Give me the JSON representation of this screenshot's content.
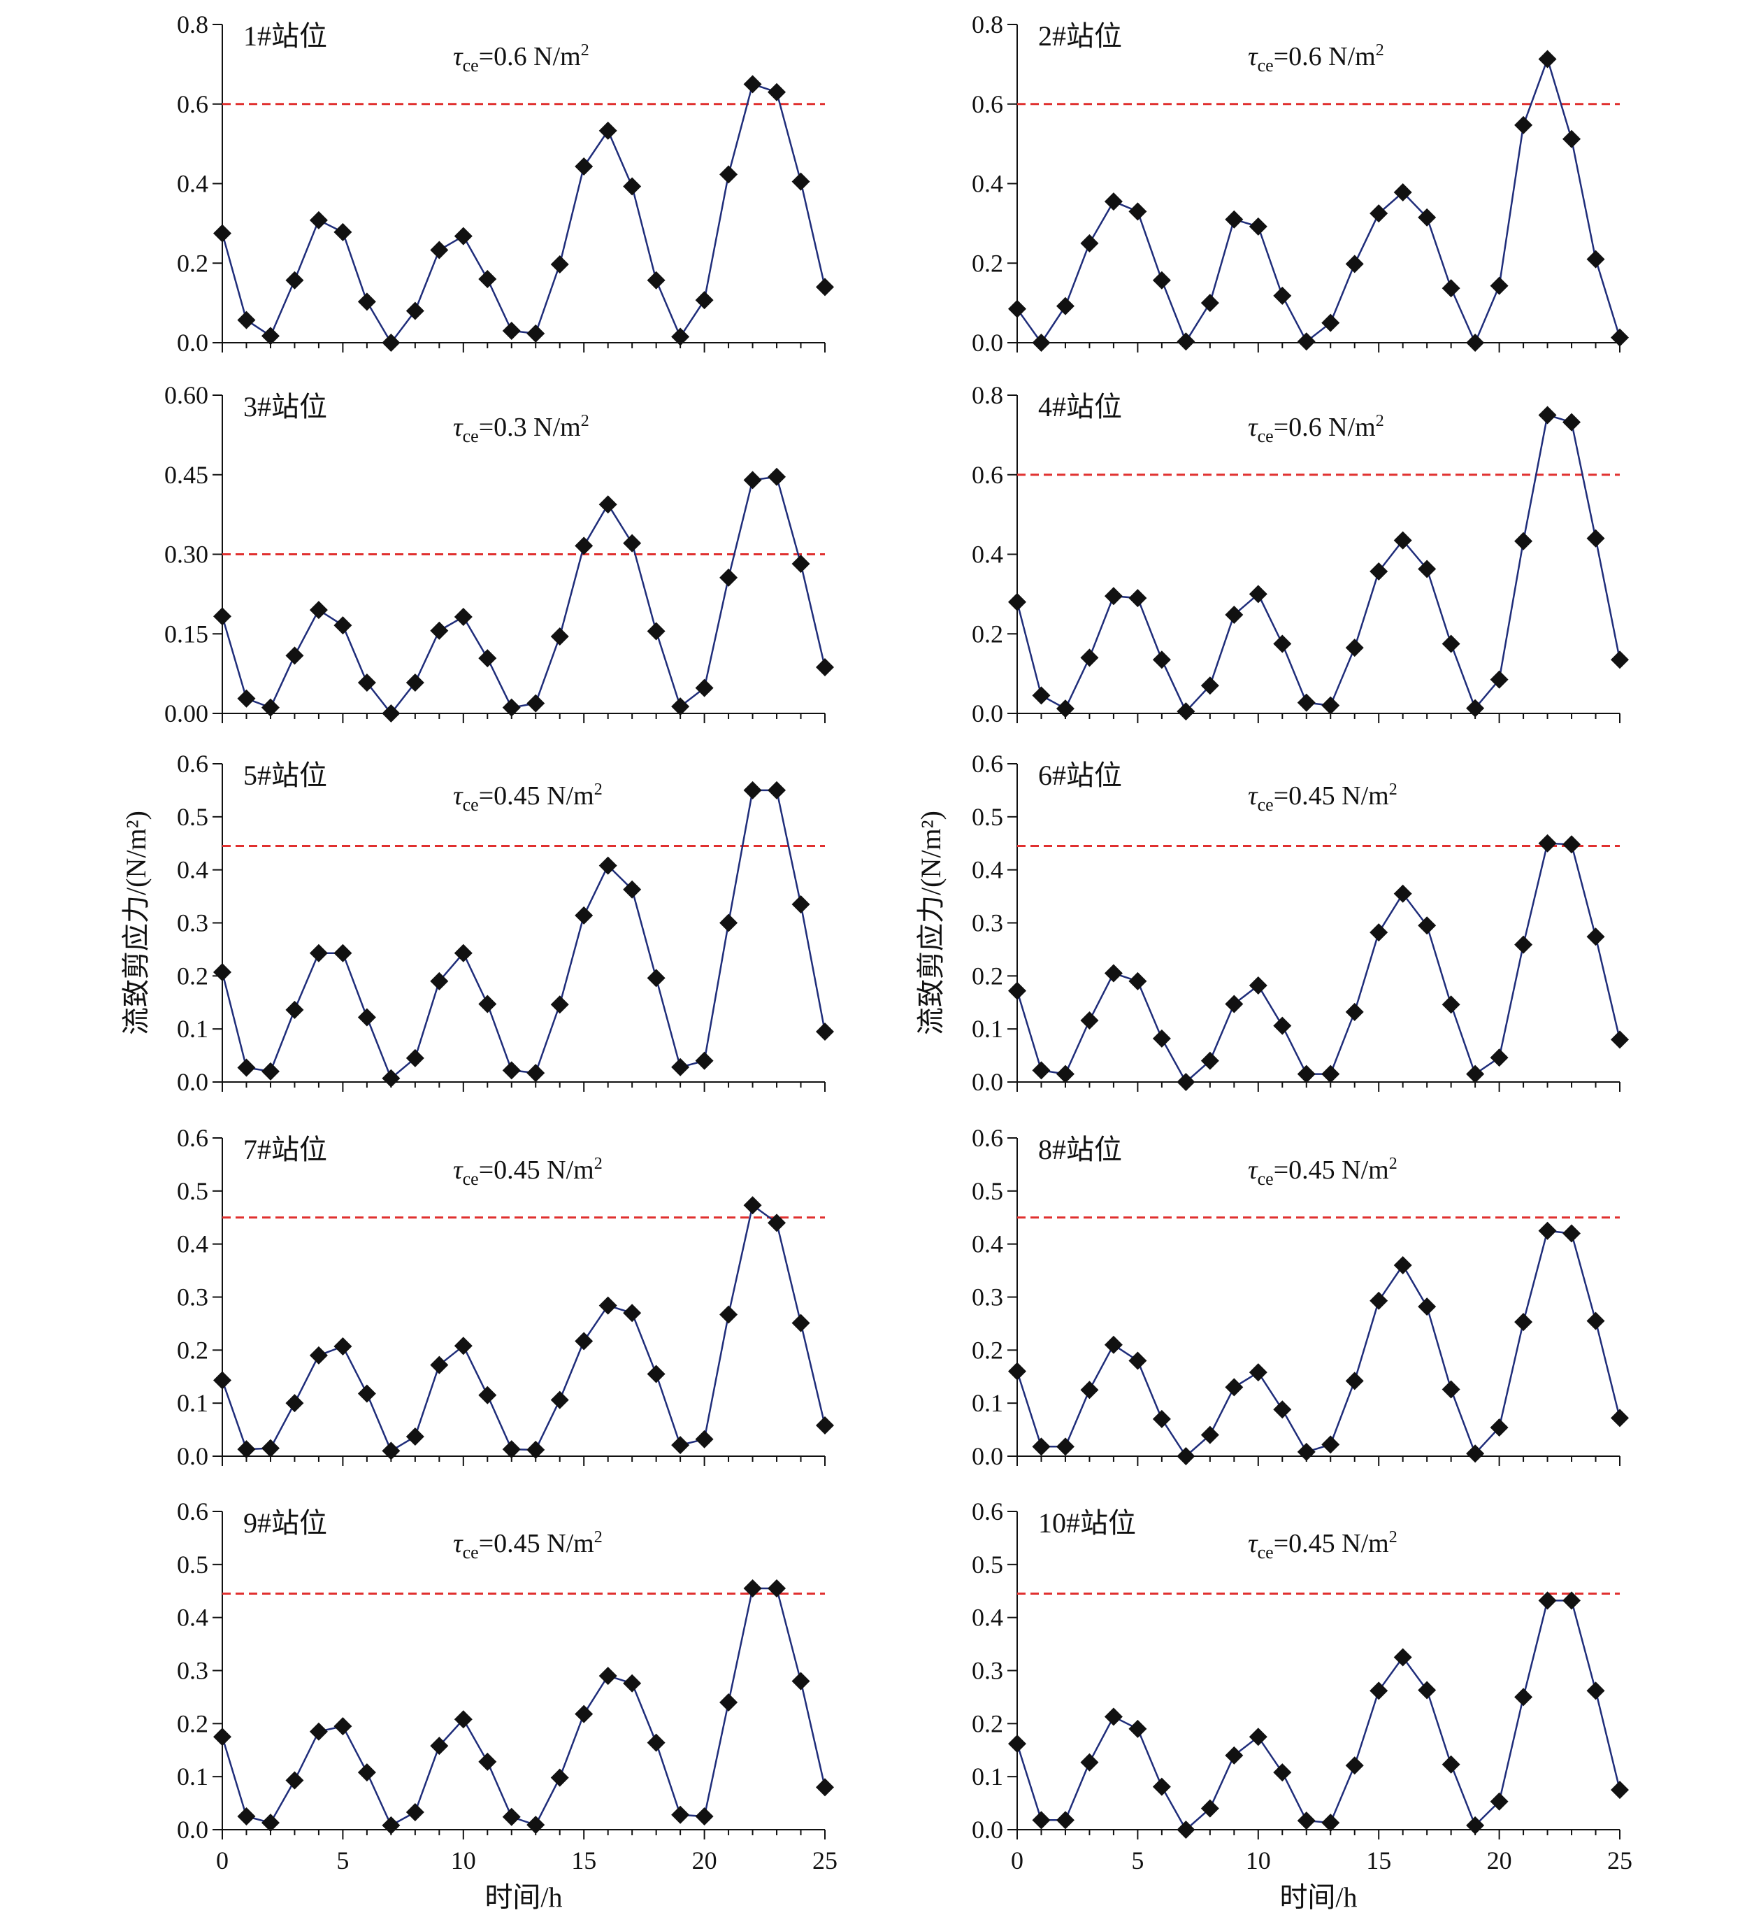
{
  "chart_data": [
    {
      "panel": "1#站位",
      "type": "line",
      "x": [
        0,
        1,
        2,
        3,
        4,
        5,
        6,
        7,
        8,
        9,
        10,
        11,
        12,
        13,
        14,
        15,
        16,
        17,
        18,
        19,
        20,
        21,
        22,
        23,
        24,
        25
      ],
      "series": [
        {
          "values": [
            0.275,
            0.057,
            0.017,
            0.157,
            0.308,
            0.278,
            0.103,
            0.0,
            0.08,
            0.233,
            0.268,
            0.16,
            0.03,
            0.023,
            0.197,
            0.443,
            0.533,
            0.393,
            0.157,
            0.015,
            0.107,
            0.423,
            0.65,
            0.63,
            0.405,
            0.14
          ]
        }
      ],
      "threshold": {
        "label_sym": "τ",
        "label_sub": "ce",
        "label_rest": "=0.6 N/m",
        "label_sup": "2",
        "value": 0.6
      },
      "ylim": [
        0,
        0.8
      ],
      "yticks": [
        "0.0",
        "0.2",
        "0.4",
        "0.6",
        "0.8"
      ],
      "ytick_values": [
        0,
        0.2,
        0.4,
        0.6,
        0.8
      ],
      "ylabel": "",
      "xlabel": "",
      "xticks": []
    },
    {
      "panel": "2#站位",
      "type": "line",
      "x": [
        0,
        1,
        2,
        3,
        4,
        5,
        6,
        7,
        8,
        9,
        10,
        11,
        12,
        13,
        14,
        15,
        16,
        17,
        18,
        19,
        20,
        21,
        22,
        23,
        24,
        25
      ],
      "series": [
        {
          "values": [
            0.085,
            0.0,
            0.092,
            0.25,
            0.355,
            0.33,
            0.157,
            0.003,
            0.1,
            0.31,
            0.292,
            0.118,
            0.003,
            0.05,
            0.198,
            0.325,
            0.378,
            0.315,
            0.137,
            0.0,
            0.143,
            0.547,
            0.713,
            0.512,
            0.21,
            0.013
          ]
        }
      ],
      "threshold": {
        "label_sym": "τ",
        "label_sub": "ce",
        "label_rest": "=0.6 N/m",
        "label_sup": "2",
        "value": 0.6
      },
      "ylim": [
        0,
        0.8
      ],
      "yticks": [
        "0.0",
        "0.2",
        "0.4",
        "0.6",
        "0.8"
      ],
      "ytick_values": [
        0,
        0.2,
        0.4,
        0.6,
        0.8
      ],
      "ylabel": "",
      "xlabel": "",
      "xticks": []
    },
    {
      "panel": "3#站位",
      "type": "line",
      "x": [
        0,
        1,
        2,
        3,
        4,
        5,
        6,
        7,
        8,
        9,
        10,
        11,
        12,
        13,
        14,
        15,
        16,
        17,
        18,
        19,
        20,
        21,
        22,
        23,
        24,
        25
      ],
      "series": [
        {
          "values": [
            0.183,
            0.028,
            0.011,
            0.109,
            0.195,
            0.166,
            0.058,
            0.0,
            0.058,
            0.156,
            0.182,
            0.104,
            0.011,
            0.019,
            0.145,
            0.316,
            0.394,
            0.321,
            0.155,
            0.013,
            0.048,
            0.256,
            0.44,
            0.446,
            0.282,
            0.087
          ]
        }
      ],
      "threshold": {
        "label_sym": "τ",
        "label_sub": "ce",
        "label_rest": "=0.3 N/m",
        "label_sup": "2",
        "value": 0.3
      },
      "ylim": [
        0,
        0.6
      ],
      "yticks": [
        "0.00",
        "0.15",
        "0.30",
        "0.45",
        "0.60"
      ],
      "ytick_values": [
        0,
        0.15,
        0.3,
        0.45,
        0.6
      ],
      "ylabel": "",
      "xlabel": "",
      "xticks": []
    },
    {
      "panel": "4#站位",
      "type": "line",
      "x": [
        0,
        1,
        2,
        3,
        4,
        5,
        6,
        7,
        8,
        9,
        10,
        11,
        12,
        13,
        14,
        15,
        16,
        17,
        18,
        19,
        20,
        21,
        22,
        23,
        24,
        25
      ],
      "series": [
        {
          "values": [
            0.28,
            0.045,
            0.012,
            0.14,
            0.295,
            0.29,
            0.135,
            0.005,
            0.07,
            0.248,
            0.3,
            0.175,
            0.027,
            0.02,
            0.165,
            0.357,
            0.435,
            0.363,
            0.175,
            0.013,
            0.085,
            0.433,
            0.75,
            0.732,
            0.44,
            0.135
          ]
        }
      ],
      "threshold": {
        "label_sym": "τ",
        "label_sub": "ce",
        "label_rest": "=0.6 N/m",
        "label_sup": "2",
        "value": 0.6
      },
      "ylim": [
        0,
        0.8
      ],
      "yticks": [
        "0.0",
        "0.2",
        "0.4",
        "0.6",
        "0.8"
      ],
      "ytick_values": [
        0,
        0.2,
        0.4,
        0.6,
        0.8
      ],
      "ylabel": "",
      "xlabel": "",
      "xticks": []
    },
    {
      "panel": "5#站位",
      "type": "line",
      "x": [
        0,
        1,
        2,
        3,
        4,
        5,
        6,
        7,
        8,
        9,
        10,
        11,
        12,
        13,
        14,
        15,
        16,
        17,
        18,
        19,
        20,
        21,
        22,
        23,
        24,
        25
      ],
      "series": [
        {
          "values": [
            0.207,
            0.027,
            0.02,
            0.136,
            0.243,
            0.243,
            0.122,
            0.007,
            0.045,
            0.19,
            0.243,
            0.147,
            0.022,
            0.017,
            0.146,
            0.314,
            0.408,
            0.363,
            0.196,
            0.028,
            0.04,
            0.3,
            0.55,
            0.55,
            0.335,
            0.095
          ]
        }
      ],
      "threshold": {
        "label_sym": "τ",
        "label_sub": "ce",
        "label_rest": "=0.45 N/m",
        "label_sup": "2",
        "value": 0.445
      },
      "ylim": [
        0,
        0.6
      ],
      "yticks": [
        "0.0",
        "0.1",
        "0.2",
        "0.3",
        "0.4",
        "0.5",
        "0.6"
      ],
      "ytick_values": [
        0,
        0.1,
        0.2,
        0.3,
        0.4,
        0.5,
        0.6
      ],
      "ylabel": "流致剪应力/(N/m²)",
      "xlabel": "",
      "xticks": []
    },
    {
      "panel": "6#站位",
      "type": "line",
      "x": [
        0,
        1,
        2,
        3,
        4,
        5,
        6,
        7,
        8,
        9,
        10,
        11,
        12,
        13,
        14,
        15,
        16,
        17,
        18,
        19,
        20,
        21,
        22,
        23,
        24,
        25
      ],
      "series": [
        {
          "values": [
            0.172,
            0.022,
            0.015,
            0.116,
            0.205,
            0.19,
            0.082,
            0.0,
            0.04,
            0.147,
            0.182,
            0.106,
            0.015,
            0.015,
            0.132,
            0.282,
            0.355,
            0.295,
            0.146,
            0.015,
            0.046,
            0.259,
            0.45,
            0.448,
            0.274,
            0.08
          ]
        }
      ],
      "threshold": {
        "label_sym": "τ",
        "label_sub": "ce",
        "label_rest": "=0.45 N/m",
        "label_sup": "2",
        "value": 0.445
      },
      "ylim": [
        0,
        0.6
      ],
      "yticks": [
        "0.0",
        "0.1",
        "0.2",
        "0.3",
        "0.4",
        "0.5",
        "0.6"
      ],
      "ytick_values": [
        0,
        0.1,
        0.2,
        0.3,
        0.4,
        0.5,
        0.6
      ],
      "ylabel": "流致剪应力/(N/m²)",
      "xlabel": "",
      "xticks": []
    },
    {
      "panel": "7#站位",
      "type": "line",
      "x": [
        0,
        1,
        2,
        3,
        4,
        5,
        6,
        7,
        8,
        9,
        10,
        11,
        12,
        13,
        14,
        15,
        16,
        17,
        18,
        19,
        20,
        21,
        22,
        23,
        24,
        25
      ],
      "series": [
        {
          "values": [
            0.143,
            0.013,
            0.015,
            0.1,
            0.19,
            0.207,
            0.118,
            0.01,
            0.037,
            0.172,
            0.208,
            0.115,
            0.013,
            0.012,
            0.106,
            0.217,
            0.284,
            0.27,
            0.155,
            0.021,
            0.032,
            0.267,
            0.473,
            0.44,
            0.251,
            0.058
          ]
        }
      ],
      "threshold": {
        "label_sym": "τ",
        "label_sub": "ce",
        "label_rest": "=0.45 N/m",
        "label_sup": "2",
        "value": 0.45
      },
      "ylim": [
        0,
        0.6
      ],
      "yticks": [
        "0.0",
        "0.1",
        "0.2",
        "0.3",
        "0.4",
        "0.5",
        "0.6"
      ],
      "ytick_values": [
        0,
        0.1,
        0.2,
        0.3,
        0.4,
        0.5,
        0.6
      ],
      "ylabel": "",
      "xlabel": "",
      "xticks": []
    },
    {
      "panel": "8#站位",
      "type": "line",
      "x": [
        0,
        1,
        2,
        3,
        4,
        5,
        6,
        7,
        8,
        9,
        10,
        11,
        12,
        13,
        14,
        15,
        16,
        17,
        18,
        19,
        20,
        21,
        22,
        23,
        24,
        25
      ],
      "series": [
        {
          "values": [
            0.16,
            0.018,
            0.018,
            0.125,
            0.21,
            0.18,
            0.07,
            0.0,
            0.04,
            0.13,
            0.158,
            0.088,
            0.008,
            0.022,
            0.142,
            0.293,
            0.36,
            0.282,
            0.126,
            0.005,
            0.054,
            0.253,
            0.425,
            0.42,
            0.255,
            0.072
          ]
        }
      ],
      "threshold": {
        "label_sym": "τ",
        "label_sub": "ce",
        "label_rest": "=0.45 N/m",
        "label_sup": "2",
        "value": 0.45
      },
      "ylim": [
        0,
        0.6
      ],
      "yticks": [
        "0.0",
        "0.1",
        "0.2",
        "0.3",
        "0.4",
        "0.5",
        "0.6"
      ],
      "ytick_values": [
        0,
        0.1,
        0.2,
        0.3,
        0.4,
        0.5,
        0.6
      ],
      "ylabel": "",
      "xlabel": "",
      "xticks": []
    },
    {
      "panel": "9#站位",
      "type": "line",
      "x": [
        0,
        1,
        2,
        3,
        4,
        5,
        6,
        7,
        8,
        9,
        10,
        11,
        12,
        13,
        14,
        15,
        16,
        17,
        18,
        19,
        20,
        21,
        22,
        23,
        24,
        25
      ],
      "series": [
        {
          "values": [
            0.175,
            0.025,
            0.013,
            0.093,
            0.185,
            0.195,
            0.108,
            0.008,
            0.033,
            0.158,
            0.208,
            0.128,
            0.024,
            0.009,
            0.098,
            0.218,
            0.29,
            0.276,
            0.164,
            0.028,
            0.025,
            0.24,
            0.455,
            0.455,
            0.28,
            0.08
          ]
        }
      ],
      "threshold": {
        "label_sym": "τ",
        "label_sub": "ce",
        "label_rest": "=0.45 N/m",
        "label_sup": "2",
        "value": 0.445
      },
      "ylim": [
        0,
        0.6
      ],
      "yticks": [
        "0.0",
        "0.1",
        "0.2",
        "0.3",
        "0.4",
        "0.5",
        "0.6"
      ],
      "ytick_values": [
        0,
        0.1,
        0.2,
        0.3,
        0.4,
        0.5,
        0.6
      ],
      "ylabel": "",
      "xlabel": "时间/h",
      "xticks": [
        "0",
        "5",
        "10",
        "15",
        "20",
        "25"
      ]
    },
    {
      "panel": "10#站位",
      "type": "line",
      "x": [
        0,
        1,
        2,
        3,
        4,
        5,
        6,
        7,
        8,
        9,
        10,
        11,
        12,
        13,
        14,
        15,
        16,
        17,
        18,
        19,
        20,
        21,
        22,
        23,
        24,
        25
      ],
      "series": [
        {
          "values": [
            0.162,
            0.018,
            0.018,
            0.127,
            0.213,
            0.19,
            0.081,
            0.0,
            0.04,
            0.14,
            0.175,
            0.108,
            0.017,
            0.013,
            0.121,
            0.262,
            0.325,
            0.263,
            0.123,
            0.008,
            0.053,
            0.25,
            0.432,
            0.432,
            0.262,
            0.075
          ]
        }
      ],
      "threshold": {
        "label_sym": "τ",
        "label_sub": "ce",
        "label_rest": "=0.45 N/m",
        "label_sup": "2",
        "value": 0.445
      },
      "ylim": [
        0,
        0.6
      ],
      "yticks": [
        "0.0",
        "0.1",
        "0.2",
        "0.3",
        "0.4",
        "0.5",
        "0.6"
      ],
      "ytick_values": [
        0,
        0.1,
        0.2,
        0.3,
        0.4,
        0.5,
        0.6
      ],
      "ylabel": "",
      "xlabel": "时间/h",
      "xticks": [
        "0",
        "5",
        "10",
        "15",
        "20",
        "25"
      ]
    }
  ],
  "colors": {
    "series_line": "#1f2d7a",
    "marker": "#111111",
    "threshold": "#e0302f",
    "axis": "#111111"
  }
}
